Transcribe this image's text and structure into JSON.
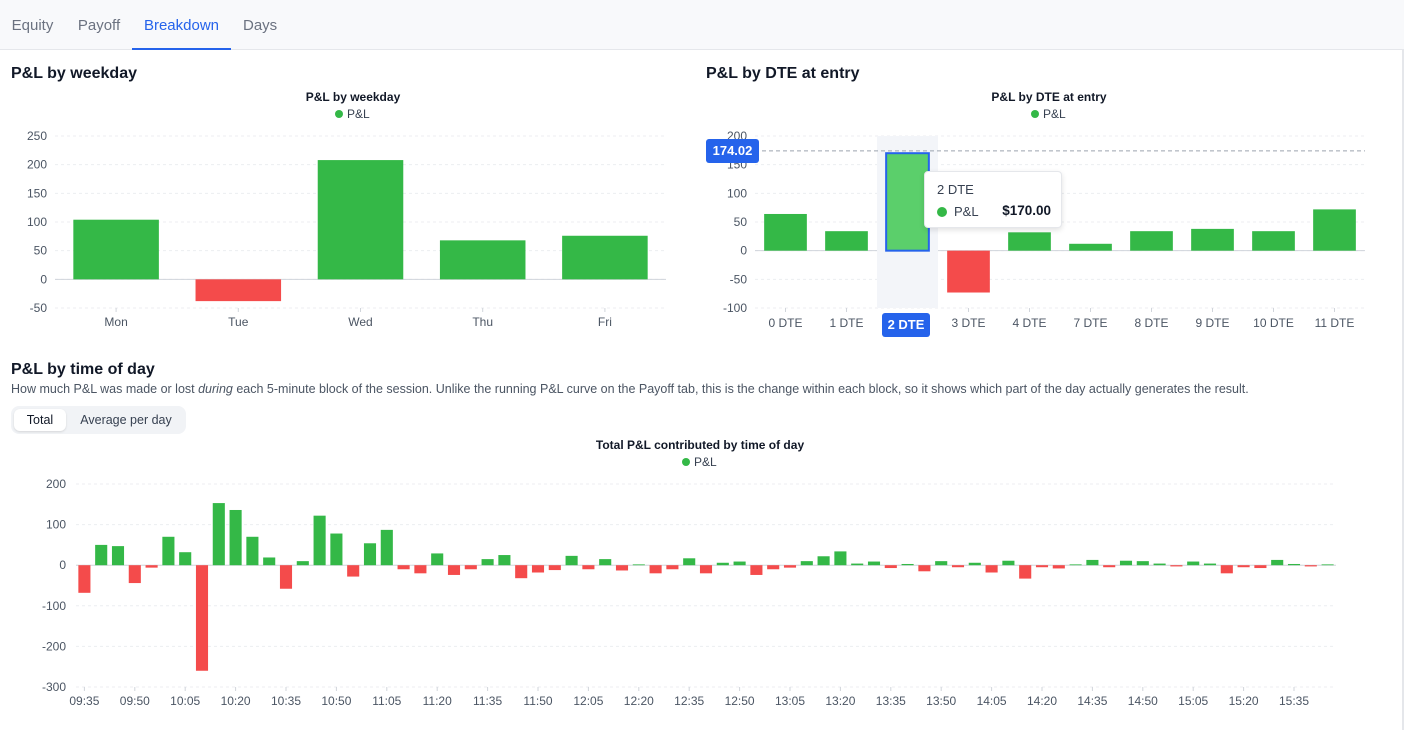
{
  "tabs": [
    {
      "label": "Equity",
      "active": false
    },
    {
      "label": "Payoff",
      "active": false
    },
    {
      "label": "Breakdown",
      "active": true
    },
    {
      "label": "Days",
      "active": false
    }
  ],
  "colors": {
    "positive": "#34b847",
    "negative": "#f44b4b",
    "accent": "#2563eb",
    "hover_bar": "#5bcf6b"
  },
  "weekday": {
    "section_title": "P&L by weekday",
    "chart_data": {
      "type": "bar",
      "title": "P&L by weekday",
      "legend": [
        "P&L"
      ],
      "legend_position": "top",
      "categories": [
        "Mon",
        "Tue",
        "Wed",
        "Thu",
        "Fri"
      ],
      "series": [
        {
          "name": "P&L",
          "values": [
            104,
            -38,
            208,
            68,
            76
          ]
        }
      ],
      "ylim": [
        -50,
        250
      ],
      "yticks": [
        -50,
        0,
        50,
        100,
        150,
        200,
        250
      ],
      "grid": true
    }
  },
  "dte": {
    "section_title": "P&L by DTE at entry",
    "chart_data": {
      "type": "bar",
      "title": "P&L by DTE at entry",
      "legend": [
        "P&L"
      ],
      "legend_position": "top",
      "categories": [
        "0 DTE",
        "1 DTE",
        "2 DTE",
        "3 DTE",
        "4 DTE",
        "7 DTE",
        "8 DTE",
        "9 DTE",
        "10 DTE",
        "11 DTE"
      ],
      "series": [
        {
          "name": "P&L",
          "values": [
            64,
            34,
            170,
            -73,
            32,
            12,
            34,
            38,
            34,
            72
          ]
        }
      ],
      "ylim": [
        -100,
        200
      ],
      "yticks": [
        -100,
        -50,
        0,
        50,
        100,
        150,
        200
      ],
      "grid": true,
      "hover_index": 2,
      "crosshair_y": 174.02
    },
    "crosshair_y_label": "174.02",
    "crosshair_x_label": "2 DTE",
    "tooltip": {
      "title": "2 DTE",
      "series_name": "P&L",
      "value": "$170.00"
    }
  },
  "time_of_day": {
    "section_title": "P&L by time of day",
    "description_before": "How much P&L was made or lost ",
    "description_emphasis": "during",
    "description_after": " each 5-minute block of the session. Unlike the running P&L curve on the Payoff tab, this is the change within each block, so it shows which part of the day actually generates the result.",
    "toggle": {
      "options": [
        "Total",
        "Average per day"
      ],
      "selected": "Total"
    },
    "chart_data": {
      "type": "bar",
      "title": "Total P&L contributed by time of day",
      "legend": [
        "P&L"
      ],
      "legend_position": "top",
      "x": [
        "09:35",
        "09:40",
        "09:45",
        "09:50",
        "09:55",
        "10:00",
        "10:05",
        "10:10",
        "10:15",
        "10:20",
        "10:25",
        "10:30",
        "10:35",
        "10:40",
        "10:45",
        "10:50",
        "10:55",
        "11:00",
        "11:05",
        "11:10",
        "11:15",
        "11:20",
        "11:25",
        "11:30",
        "11:35",
        "11:40",
        "11:45",
        "11:50",
        "11:55",
        "12:00",
        "12:05",
        "12:10",
        "12:15",
        "12:20",
        "12:25",
        "12:30",
        "12:35",
        "12:40",
        "12:45",
        "12:50",
        "12:55",
        "13:00",
        "13:05",
        "13:10",
        "13:15",
        "13:20",
        "13:25",
        "13:30",
        "13:35",
        "13:40",
        "13:45",
        "13:50",
        "13:55",
        "14:00",
        "14:05",
        "14:10",
        "14:15",
        "14:20",
        "14:25",
        "14:30",
        "14:35",
        "14:40",
        "14:45",
        "14:50",
        "14:55",
        "15:00",
        "15:05",
        "15:10",
        "15:15",
        "15:20",
        "15:25",
        "15:30",
        "15:35",
        "15:40",
        "15:45"
      ],
      "series": [
        {
          "name": "P&L",
          "values": [
            -68,
            50,
            47,
            -44,
            -6,
            70,
            32,
            -260,
            153,
            136,
            70,
            19,
            -58,
            10,
            122,
            78,
            -28,
            54,
            87,
            -10,
            -20,
            29,
            -24,
            -10,
            15,
            25,
            -32,
            -18,
            -12,
            23,
            -10,
            15,
            -13,
            2,
            -20,
            -10,
            17,
            -20,
            6,
            9,
            -24,
            -10,
            -6,
            10,
            22,
            34,
            4,
            9,
            -7,
            3,
            -15,
            10,
            -5,
            6,
            -18,
            11,
            -33,
            -5,
            -8,
            2,
            13,
            -5,
            11,
            10,
            4,
            -3,
            9,
            4,
            -20,
            -5,
            -7,
            13,
            3,
            -3,
            2
          ]
        }
      ],
      "xticks": [
        "09:35",
        "09:50",
        "10:05",
        "10:20",
        "10:35",
        "10:50",
        "11:05",
        "11:20",
        "11:35",
        "11:50",
        "12:05",
        "12:20",
        "12:35",
        "12:50",
        "13:05",
        "13:20",
        "13:35",
        "13:50",
        "14:05",
        "14:20",
        "14:35",
        "14:50",
        "15:05",
        "15:20",
        "15:35"
      ],
      "ylim": [
        -300,
        200
      ],
      "yticks": [
        -300,
        -200,
        -100,
        0,
        100,
        200
      ],
      "grid": true
    }
  }
}
